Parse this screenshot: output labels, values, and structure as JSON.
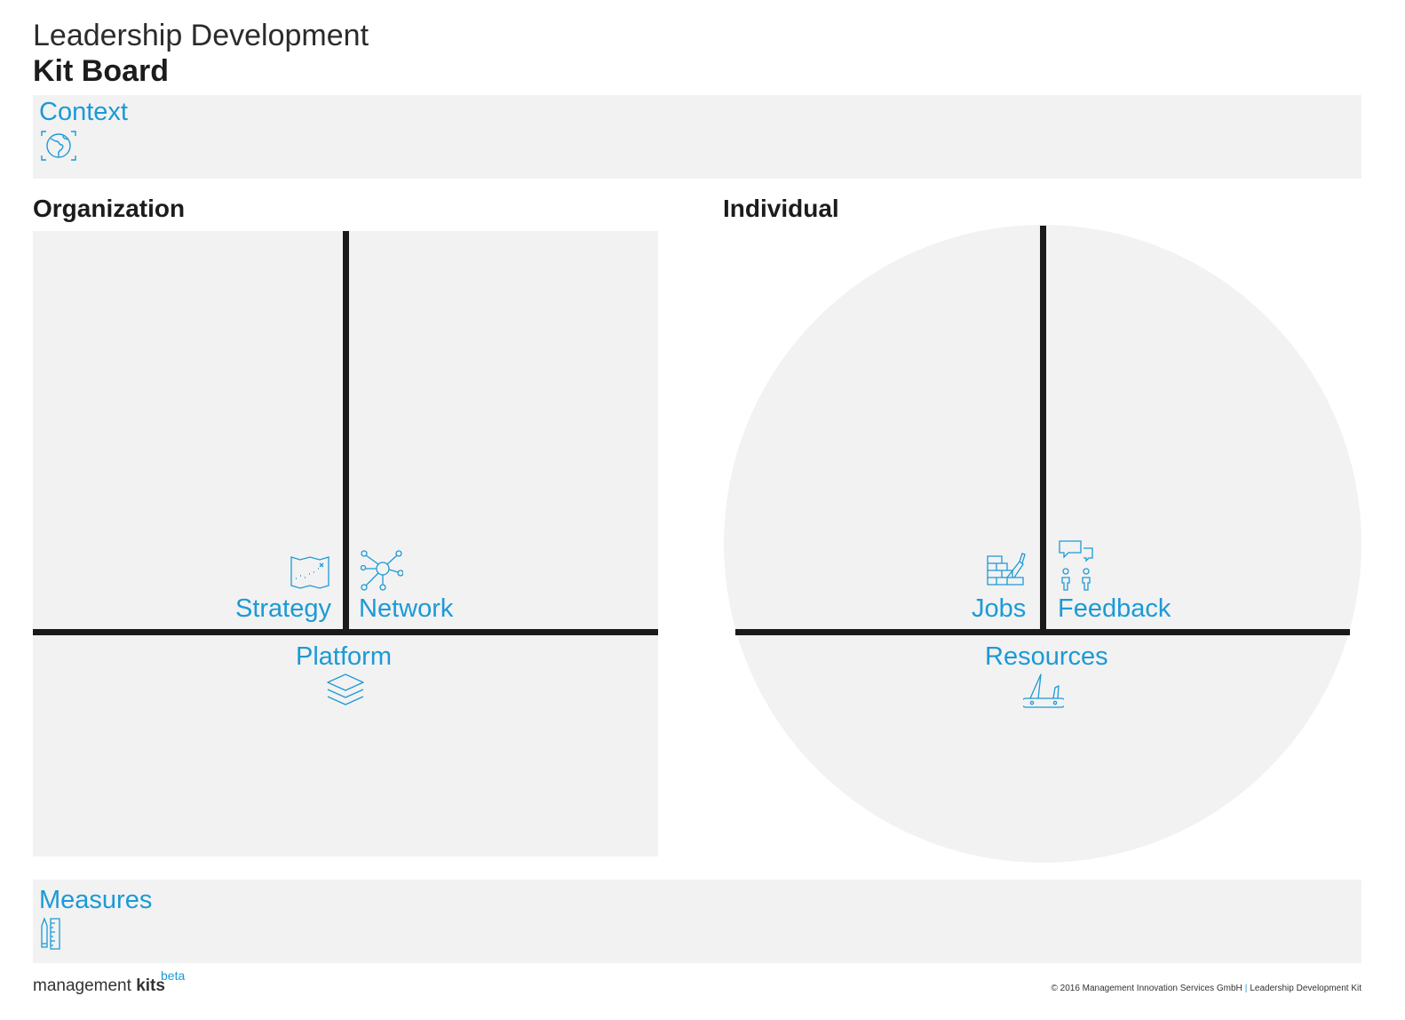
{
  "header": {
    "title_light": "Leadership Development",
    "title_bold": "Kit Board"
  },
  "context": {
    "label": "Context",
    "icon": "globe-icon"
  },
  "organization": {
    "title": "Organization",
    "strategy": {
      "label": "Strategy",
      "icon": "map-icon"
    },
    "network": {
      "label": "Network",
      "icon": "network-icon"
    },
    "platform": {
      "label": "Platform",
      "icon": "layers-icon"
    }
  },
  "individual": {
    "title": "Individual",
    "jobs": {
      "label": "Jobs",
      "icon": "brick-wall-trowel-icon"
    },
    "feedback": {
      "label": "Feedback",
      "icon": "speech-bubbles-people-icon"
    },
    "resources": {
      "label": "Resources",
      "icon": "swiss-knife-icon"
    }
  },
  "measures": {
    "label": "Measures",
    "icon": "ruler-pencil-icon"
  },
  "footer": {
    "brand_regular": "management",
    "brand_bold": "kits",
    "brand_sup": "beta",
    "copyright": "© 2016 Management Innovation Services GmbH",
    "separator": "|",
    "kit_name": "Leadership Development Kit"
  },
  "colors": {
    "accent": "#1b9ad6",
    "panel": "#f2f2f2",
    "divider": "#1a1a1a"
  }
}
